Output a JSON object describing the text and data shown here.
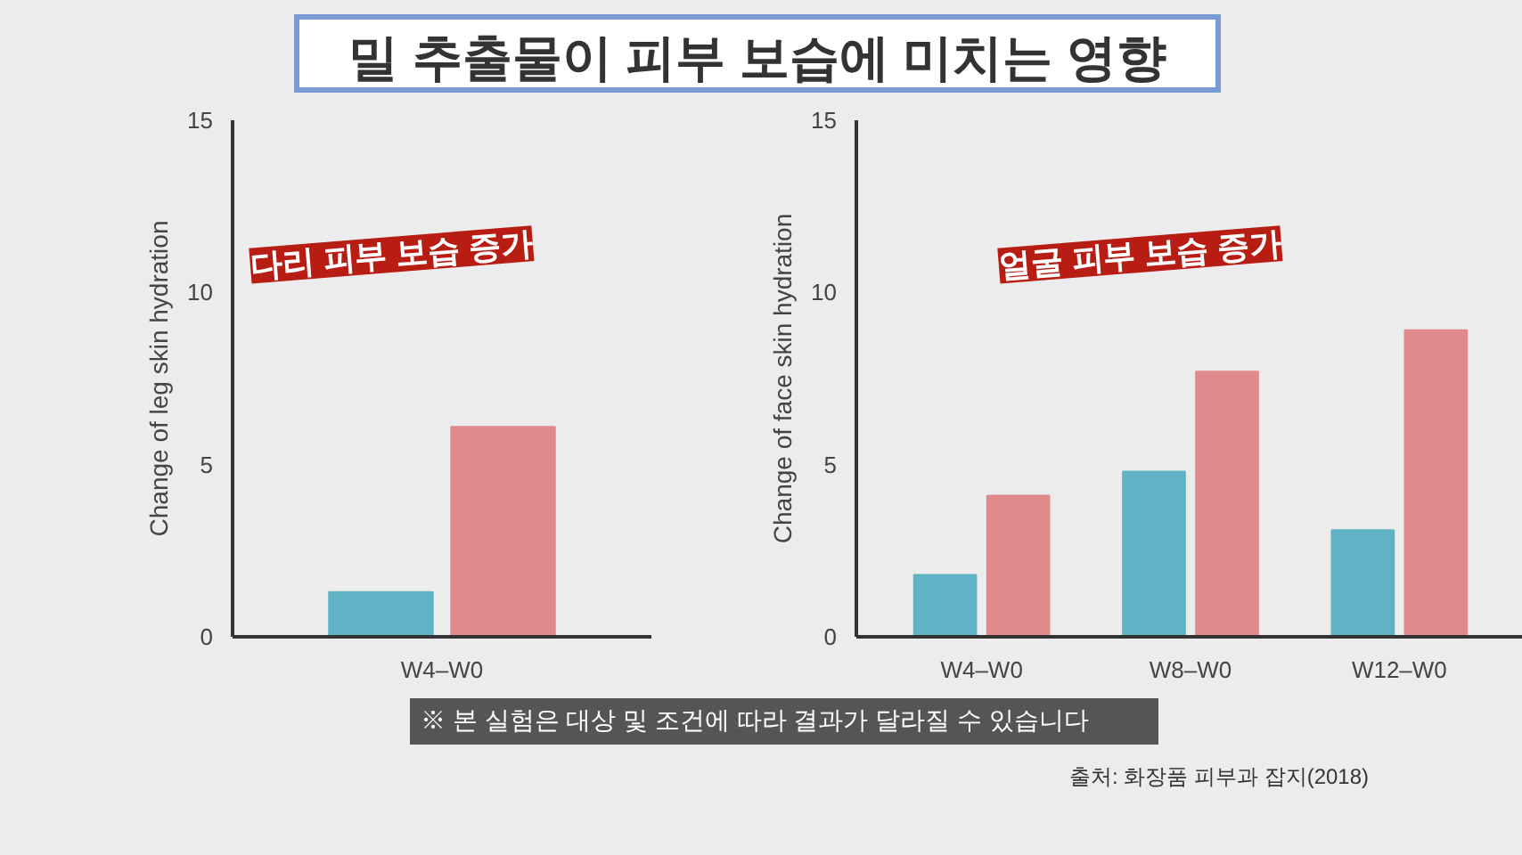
{
  "chart_data": [
    {
      "type": "bar",
      "ylabel": "Change of leg skin hydration",
      "categories": [
        "W4–W0"
      ],
      "series": [
        {
          "color": "#5fb3c4",
          "values": [
            1.3
          ]
        },
        {
          "color": "#e08a8c",
          "values": [
            6.1
          ]
        }
      ],
      "ylim": [
        0,
        15
      ],
      "yticks": [
        0,
        5,
        10,
        15
      ],
      "annotations": [
        "다리 피부 보습 증가"
      ]
    },
    {
      "type": "bar",
      "title": "밀 추출물이 피부 보습에 미치는 영향",
      "ylabel": "Change of face skin hydration",
      "categories": [
        "W4–W0",
        "W8–W0",
        "W12–W0"
      ],
      "series": [
        {
          "color": "#5fb3c4",
          "values": [
            1.8,
            4.8,
            3.1
          ]
        },
        {
          "color": "#e08a8c",
          "values": [
            4.1,
            7.7,
            8.9
          ]
        }
      ],
      "ylim": [
        0,
        15
      ],
      "yticks": [
        0,
        5,
        10,
        15
      ],
      "annotations": [
        "얼굴 피부 보습 증가",
        "※ 본 실험은 대상 및 조건에 따라 결과가 달라질 수 있습니다",
        "출처: 화장품 피부과 잡지(2018)"
      ]
    }
  ]
}
